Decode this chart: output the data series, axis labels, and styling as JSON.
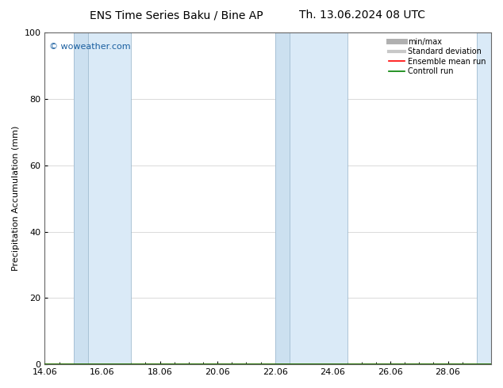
{
  "title_left": "ENS Time Series Baku / Bine AP",
  "title_right": "Th. 13.06.2024 08 UTC",
  "ylabel": "Precipitation Accumulation (mm)",
  "ylim": [
    0,
    100
  ],
  "yticks": [
    0,
    20,
    40,
    60,
    80,
    100
  ],
  "xtick_labels": [
    "14.06",
    "16.06",
    "18.06",
    "20.06",
    "22.06",
    "24.06",
    "26.06",
    "28.06"
  ],
  "xtick_positions": [
    0,
    2,
    4,
    6,
    8,
    10,
    12,
    14
  ],
  "xlim": [
    0,
    15.5
  ],
  "shaded_bands": [
    {
      "x_start": 1.0,
      "x_end": 1.5,
      "color": "#cce0f0"
    },
    {
      "x_start": 1.5,
      "x_end": 3.0,
      "color": "#daeaf7"
    },
    {
      "x_start": 8.0,
      "x_end": 8.5,
      "color": "#cce0f0"
    },
    {
      "x_start": 8.5,
      "x_end": 10.5,
      "color": "#daeaf7"
    },
    {
      "x_start": 15.0,
      "x_end": 15.5,
      "color": "#daeaf7"
    }
  ],
  "band_borders": [
    1.0,
    1.5,
    3.0,
    8.0,
    8.5,
    10.5,
    15.0
  ],
  "border_color": "#a0bcd0",
  "watermark": "© woweather.com",
  "watermark_color": "#1a5fa0",
  "legend_items": [
    {
      "label": "min/max",
      "color": "#b0b0b0",
      "linewidth": 5
    },
    {
      "label": "Standard deviation",
      "color": "#c8c8c8",
      "linewidth": 3
    },
    {
      "label": "Ensemble mean run",
      "color": "#ff0000",
      "linewidth": 1.2
    },
    {
      "label": "Controll run",
      "color": "#008000",
      "linewidth": 1.2
    }
  ],
  "background_color": "#ffffff",
  "plot_bg_color": "#ffffff",
  "grid_color": "#cccccc",
  "title_fontsize": 10,
  "tick_fontsize": 8,
  "ylabel_fontsize": 8,
  "watermark_fontsize": 8,
  "legend_fontsize": 7
}
